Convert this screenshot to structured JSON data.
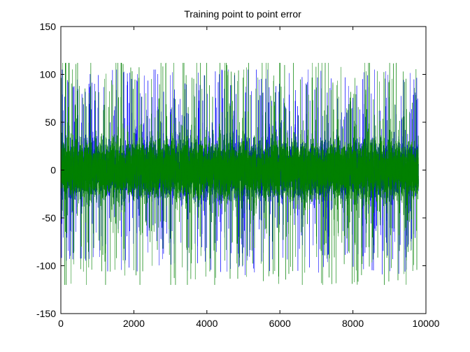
{
  "chart_data": {
    "type": "line",
    "title": "Training point to point error",
    "xlabel": "",
    "ylabel": "",
    "xlim": [
      0,
      10000
    ],
    "ylim": [
      -150,
      150
    ],
    "xticks": [
      0,
      2000,
      4000,
      6000,
      8000,
      10000
    ],
    "yticks": [
      -150,
      -100,
      -50,
      0,
      50,
      100,
      150
    ],
    "xtick_labels": [
      "0",
      "2000",
      "4000",
      "6000",
      "8000",
      "10000"
    ],
    "ytick_labels": [
      "-150",
      "-100",
      "-50",
      "0",
      "50",
      "100",
      "150"
    ],
    "grid": false,
    "legend": "none",
    "num_points": 9800,
    "series": [
      {
        "color": "#0000ff",
        "description": "noisy error signal centered at 0, spikes roughly within ±105",
        "typical_range": [
          -110,
          105
        ]
      },
      {
        "color": "#008000",
        "description": "noisy error signal centered at 0, spikes roughly within ±120",
        "typical_range": [
          -120,
          112
        ]
      }
    ]
  }
}
